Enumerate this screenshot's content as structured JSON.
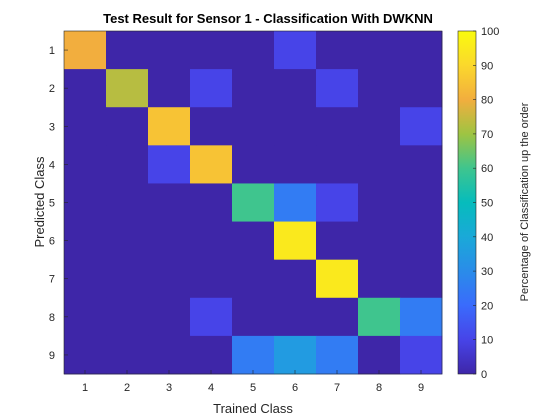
{
  "chart_data": {
    "type": "heatmap",
    "title": "Test Result for Sensor 1 - Classification With DWKNN",
    "xlabel": "Trained Class",
    "ylabel": "Predicted Class",
    "x_categories": [
      "1",
      "2",
      "3",
      "4",
      "5",
      "6",
      "7",
      "8",
      "9"
    ],
    "y_categories": [
      "1",
      "2",
      "3",
      "4",
      "5",
      "6",
      "7",
      "8",
      "9"
    ],
    "values": [
      [
        80,
        0,
        0,
        0,
        0,
        10,
        0,
        0,
        0
      ],
      [
        0,
        73,
        0,
        10,
        0,
        0,
        10,
        0,
        0
      ],
      [
        0,
        0,
        85,
        0,
        0,
        0,
        0,
        0,
        10
      ],
      [
        0,
        0,
        10,
        85,
        0,
        0,
        0,
        0,
        0
      ],
      [
        0,
        0,
        0,
        0,
        60,
        25,
        10,
        0,
        0
      ],
      [
        0,
        0,
        0,
        0,
        0,
        95,
        0,
        0,
        0
      ],
      [
        0,
        0,
        0,
        0,
        0,
        0,
        95,
        0,
        0
      ],
      [
        0,
        0,
        0,
        10,
        0,
        0,
        0,
        60,
        25
      ],
      [
        0,
        0,
        0,
        0,
        25,
        35,
        25,
        0,
        10
      ]
    ],
    "colorbar": {
      "label": "Percentage of Classification up the order",
      "min": 0,
      "max": 100,
      "ticks": [
        "0",
        "10",
        "20",
        "30",
        "40",
        "50",
        "60",
        "70",
        "80",
        "90",
        "100"
      ],
      "colormap": "parula"
    }
  }
}
